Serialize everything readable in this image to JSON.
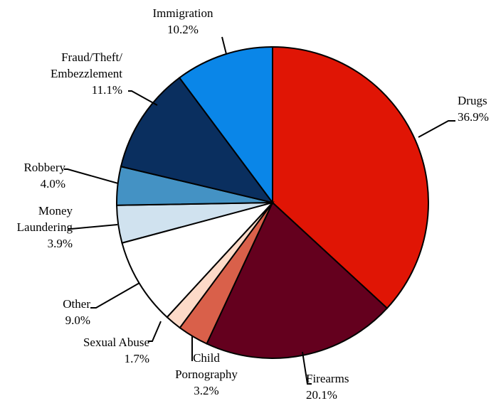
{
  "chart_data": {
    "type": "pie",
    "title": "",
    "slices": [
      {
        "name": "Drugs",
        "label_lines": [
          "Drugs"
        ],
        "value": 36.9,
        "pct_label": "36.9%",
        "color": "#E01505"
      },
      {
        "name": "Firearms",
        "label_lines": [
          "Firearms"
        ],
        "value": 20.1,
        "pct_label": "20.1%",
        "color": "#64001E"
      },
      {
        "name": "Child Pornography",
        "label_lines": [
          "Child",
          "Pornography"
        ],
        "value": 3.2,
        "pct_label": "3.2%",
        "color": "#D9604A"
      },
      {
        "name": "Sexual Abuse",
        "label_lines": [
          "Sexual Abuse"
        ],
        "value": 1.7,
        "pct_label": "1.7%",
        "color": "#FDDAC8"
      },
      {
        "name": "Other",
        "label_lines": [
          "Other"
        ],
        "value": 9.0,
        "pct_label": "9.0%",
        "color": "#FFFFFF"
      },
      {
        "name": "Money Laundering",
        "label_lines": [
          "Money",
          "Laundering"
        ],
        "value": 3.9,
        "pct_label": "3.9%",
        "color": "#D0E2EF"
      },
      {
        "name": "Robbery",
        "label_lines": [
          "Robbery"
        ],
        "value": 4.0,
        "pct_label": "4.0%",
        "color": "#4492C4"
      },
      {
        "name": "Fraud/Theft/Embezzlement",
        "label_lines": [
          "Fraud/Theft/",
          "Embezzlement"
        ],
        "value": 11.1,
        "pct_label": "11.1%",
        "color": "#0A2F5F"
      },
      {
        "name": "Immigration",
        "label_lines": [
          "Immigration"
        ],
        "value": 10.2,
        "pct_label": "10.2%",
        "color": "#0A86E8"
      }
    ]
  }
}
